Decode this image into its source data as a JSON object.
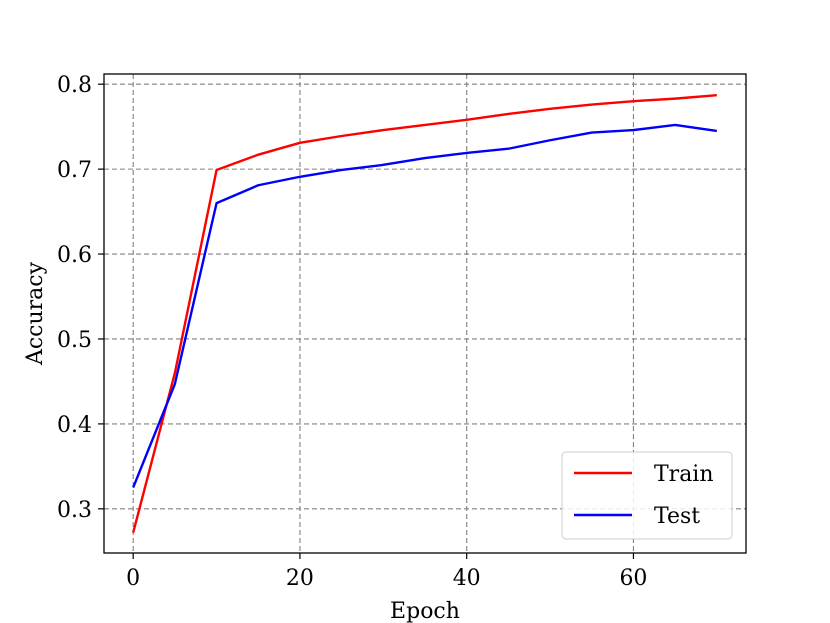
{
  "chart_data": {
    "type": "line",
    "title": "",
    "xlabel": "Epoch",
    "ylabel": "Accuracy",
    "xlim": [
      -3.5,
      73.5
    ],
    "ylim": [
      0.248,
      0.812
    ],
    "x_ticks": [
      0,
      20,
      40,
      60
    ],
    "y_ticks": [
      0.3,
      0.4,
      0.5,
      0.6,
      0.7,
      0.8
    ],
    "grid": true,
    "legend_position": "bottom-right",
    "series": [
      {
        "name": "Train",
        "color": "#ff0000",
        "x": [
          0,
          5,
          10,
          15,
          20,
          25,
          30,
          35,
          40,
          45,
          50,
          55,
          60,
          65,
          70
        ],
        "y": [
          0.272,
          0.46,
          0.699,
          0.717,
          0.731,
          0.739,
          0.746,
          0.752,
          0.758,
          0.765,
          0.771,
          0.776,
          0.78,
          0.783,
          0.787
        ]
      },
      {
        "name": "Test",
        "color": "#0000ff",
        "x": [
          0,
          5,
          10,
          15,
          20,
          25,
          30,
          35,
          40,
          45,
          50,
          55,
          60,
          65,
          70
        ],
        "y": [
          0.325,
          0.447,
          0.66,
          0.681,
          0.691,
          0.699,
          0.705,
          0.713,
          0.719,
          0.724,
          0.734,
          0.743,
          0.746,
          0.752,
          0.745
        ]
      }
    ]
  }
}
